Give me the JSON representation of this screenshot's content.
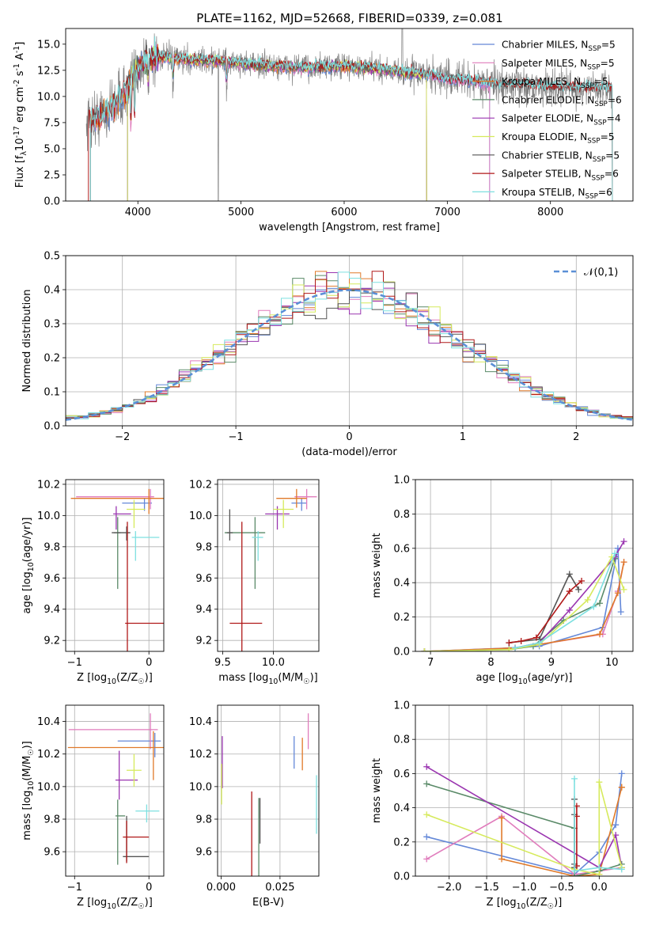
{
  "figure": {
    "title": "PLATE=1162, MJD=52668, FIBERID=0339, z=0.081"
  },
  "colors": {
    "Chabrier MILES": "#6488d8",
    "Salpeter MILES": "#e07cbc",
    "Kroupa MILES": "#e07a2a",
    "Chabrier ELODIE": "#5a8a68",
    "Salpeter ELODIE": "#9a35b0",
    "Kroupa ELODIE": "#d6ea5c",
    "Chabrier STELIB": "#555555",
    "Salpeter STELIB": "#b01818",
    "Kroupa STELIB": "#7ee0e0",
    "normal_curve": "#5b8fd6",
    "data": "#7f7f7f"
  },
  "chart_data": [
    {
      "id": "spectrum",
      "type": "line",
      "xlabel": "wavelength [Angstrom, rest frame]",
      "ylabel": "Flux [f$_λ$10$^{-17}$ erg cm$^{-2}$ s$^{-1}$ A$^{-1}$]",
      "xlim": [
        3300,
        8800
      ],
      "ylim": [
        0,
        16.5
      ],
      "xticks": [
        4000,
        5000,
        6000,
        7000,
        8000
      ],
      "yticks": [
        0.0,
        2.5,
        5.0,
        7.5,
        10.0,
        12.5,
        15.0
      ],
      "grid": false,
      "legend_position": "upper right",
      "legend": [
        "Chabrier MILES, N$_{SSP}$=5",
        "Salpeter MILES, N$_{SSP}$=5",
        "Kroupa MILES, N$_{SSP}$=5",
        "Chabrier ELODIE, N$_{SSP}$=6",
        "Salpeter ELODIE, N$_{SSP}$=4",
        "Kroupa ELODIE, N$_{SSP}$=5",
        "Chabrier STELIB, N$_{SSP}$=5",
        "Salpeter STELIB, N$_{SSP}$=6",
        "Kroupa STELIB, N$_{SSP}$=6"
      ],
      "continuum_x": [
        3500,
        3600,
        3700,
        3800,
        3900,
        4000,
        4100,
        4200,
        4300,
        4500,
        4800,
        5000,
        5200,
        5500,
        5800,
        6000,
        6300,
        6600,
        6800,
        7000,
        7300,
        7500,
        7700,
        8000,
        8300,
        8500
      ],
      "continuum_y": [
        7.6,
        7.9,
        8.6,
        9.5,
        10.6,
        12.8,
        13.6,
        13.8,
        13.7,
        13.5,
        13.4,
        13.2,
        13.0,
        12.8,
        12.8,
        12.9,
        12.7,
        12.3,
        12.1,
        11.7,
        11.4,
        11.1,
        11.1,
        10.9,
        10.8,
        10.8
      ]
    },
    {
      "id": "residual-histogram",
      "type": "line",
      "xlabel": "(data-model)/error",
      "ylabel": "Normed distribution",
      "xlim": [
        -2.5,
        2.5
      ],
      "ylim": [
        0,
        0.5
      ],
      "xticks": [
        -2,
        -1,
        0,
        1,
        2
      ],
      "yticks": [
        0.0,
        0.1,
        0.2,
        0.3,
        0.4,
        0.5
      ],
      "grid": true,
      "legend_position": "upper right",
      "legend": [
        "$\\mathcal{N}(0,1)$"
      ],
      "normal_curve": {
        "mean": 0,
        "sigma": 1
      }
    },
    {
      "id": "age-vs-Z",
      "type": "scatter",
      "xlabel": "Z [log$_{10}$(Z/Z$_☉$)]",
      "ylabel": "age  [log$_{10}$(age/yr)]",
      "xlim": [
        -1.12,
        0.2
      ],
      "ylim": [
        9.13,
        10.23
      ],
      "xticks": [
        -1,
        0
      ],
      "yticks": [
        9.2,
        9.4,
        9.6,
        9.8,
        10.0,
        10.2
      ],
      "grid": true,
      "points": [
        {
          "model": "Chabrier MILES",
          "x": -0.06,
          "xerr": [
            0.3,
            0.1
          ],
          "y": 10.08,
          "yerr": [
            0.05,
            0.03
          ]
        },
        {
          "model": "Salpeter MILES",
          "x": 0.02,
          "xerr": [
            1.0,
            0.05
          ],
          "y": 10.12,
          "yerr": [
            0.08,
            0.05
          ]
        },
        {
          "model": "Kroupa MILES",
          "x": 0.0,
          "xerr": [
            1.05,
            0.2
          ],
          "y": 10.11,
          "yerr": [
            0.1,
            0.06
          ]
        },
        {
          "model": "Chabrier ELODIE",
          "x": -0.42,
          "xerr": [
            0.05,
            0.04
          ],
          "y": 9.89,
          "yerr": [
            0.36,
            0.1
          ]
        },
        {
          "model": "Salpeter ELODIE",
          "x": -0.44,
          "xerr": [
            0.04,
            0.2
          ],
          "y": 10.01,
          "yerr": [
            0.1,
            0.05
          ]
        },
        {
          "model": "Kroupa ELODIE",
          "x": -0.2,
          "xerr": [
            0.1,
            0.15
          ],
          "y": 10.04,
          "yerr": [
            0.12,
            0.06
          ]
        },
        {
          "model": "Chabrier STELIB",
          "x": -0.3,
          "xerr": [
            0.2,
            0.05
          ],
          "y": 9.89,
          "yerr": [
            0.05,
            0.04
          ]
        },
        {
          "model": "Salpeter STELIB",
          "x": -0.29,
          "xerr": [
            0.03,
            0.5
          ],
          "y": 9.31,
          "yerr": [
            0.3,
            0.65
          ]
        },
        {
          "model": "Kroupa STELIB",
          "x": -0.18,
          "xerr": [
            0.05,
            0.32
          ],
          "y": 9.86,
          "yerr": [
            0.15,
            0.04
          ]
        }
      ]
    },
    {
      "id": "age-vs-mass",
      "type": "scatter",
      "xlabel": "mass [log$_{10}$(M/M$_☉$)]",
      "ylabel": "",
      "xlim": [
        9.45,
        10.45
      ],
      "ylim": [
        9.13,
        10.23
      ],
      "xticks": [
        9.5,
        10.0
      ],
      "yticks": [
        9.2,
        9.4,
        9.6,
        9.8,
        10.0,
        10.2
      ],
      "grid": true,
      "points": [
        {
          "model": "Chabrier MILES",
          "x": 10.28,
          "xerr": [
            0.1,
            0.05
          ],
          "y": 10.08,
          "yerr": [
            0.05,
            0.03
          ]
        },
        {
          "model": "Salpeter MILES",
          "x": 10.33,
          "xerr": [
            0.12,
            0.1
          ],
          "y": 10.12,
          "yerr": [
            0.08,
            0.05
          ]
        },
        {
          "model": "Kroupa MILES",
          "x": 10.23,
          "xerr": [
            0.2,
            0.1
          ],
          "y": 10.11,
          "yerr": [
            0.06,
            0.06
          ]
        },
        {
          "model": "Chabrier ELODIE",
          "x": 9.82,
          "xerr": [
            0.3,
            0.1
          ],
          "y": 9.89,
          "yerr": [
            0.36,
            0.1
          ]
        },
        {
          "model": "Salpeter ELODIE",
          "x": 10.04,
          "xerr": [
            0.12,
            0.12
          ],
          "y": 10.01,
          "yerr": [
            0.1,
            0.05
          ]
        },
        {
          "model": "Kroupa ELODIE",
          "x": 10.1,
          "xerr": [
            0.1,
            0.1
          ],
          "y": 10.04,
          "yerr": [
            0.12,
            0.06
          ]
        },
        {
          "model": "Chabrier STELIB",
          "x": 9.57,
          "xerr": [
            0.03,
            0.03
          ],
          "y": 9.89,
          "yerr": [
            0.05,
            0.15
          ]
        },
        {
          "model": "Salpeter STELIB",
          "x": 9.69,
          "xerr": [
            0.12,
            0.2
          ],
          "y": 9.31,
          "yerr": [
            0.3,
            0.65
          ]
        },
        {
          "model": "Kroupa STELIB",
          "x": 9.85,
          "xerr": [
            0.06,
            0.05
          ],
          "y": 9.86,
          "yerr": [
            0.15,
            0.04
          ]
        }
      ]
    },
    {
      "id": "mass-weight-vs-age",
      "type": "line",
      "xlabel": "age  [log$_{10}$(age/yr)]",
      "ylabel": "mass weight",
      "xlim": [
        6.75,
        10.35
      ],
      "ylim": [
        0,
        1.0
      ],
      "xticks": [
        7,
        8,
        9,
        10
      ],
      "yticks": [
        0.0,
        0.2,
        0.4,
        0.6,
        0.8,
        1.0
      ],
      "grid": true,
      "series": [
        {
          "model": "Chabrier MILES",
          "x": [
            6.9,
            8.3,
            8.8,
            9.85,
            10.1,
            10.15
          ],
          "y": [
            0.0,
            0.02,
            0.03,
            0.14,
            0.6,
            0.23
          ]
        },
        {
          "model": "Salpeter MILES",
          "x": [
            6.9,
            8.4,
            8.8,
            9.85,
            10.1,
            10.2
          ],
          "y": [
            0.0,
            0.02,
            0.04,
            0.1,
            0.35,
            0.52
          ]
        },
        {
          "model": "Kroupa MILES",
          "x": [
            6.9,
            8.4,
            8.8,
            9.8,
            10.1,
            10.2
          ],
          "y": [
            0.0,
            0.02,
            0.04,
            0.1,
            0.34,
            0.52
          ]
        },
        {
          "model": "Chabrier ELODIE",
          "x": [
            6.9,
            8.3,
            8.7,
            9.2,
            9.8,
            10.05
          ],
          "y": [
            0.0,
            0.01,
            0.03,
            0.18,
            0.28,
            0.54
          ]
        },
        {
          "model": "Salpeter ELODIE",
          "x": [
            8.4,
            8.8,
            9.3,
            10.05,
            10.2
          ],
          "y": [
            0.02,
            0.05,
            0.24,
            0.55,
            0.64
          ]
        },
        {
          "model": "Kroupa ELODIE",
          "x": [
            6.9,
            8.3,
            8.8,
            9.6,
            10.0,
            10.2
          ],
          "y": [
            0.0,
            0.01,
            0.04,
            0.3,
            0.55,
            0.36
          ]
        },
        {
          "model": "Chabrier STELIB",
          "x": [
            8.3,
            8.8,
            9.3,
            9.45
          ],
          "y": [
            0.05,
            0.07,
            0.45,
            0.36
          ]
        },
        {
          "model": "Salpeter STELIB",
          "x": [
            8.3,
            8.5,
            8.75,
            9.3,
            9.5
          ],
          "y": [
            0.05,
            0.06,
            0.08,
            0.35,
            0.41
          ]
        },
        {
          "model": "Kroupa STELIB",
          "x": [
            8.4,
            8.8,
            9.7,
            10.05
          ],
          "y": [
            0.02,
            0.05,
            0.26,
            0.57
          ]
        }
      ]
    },
    {
      "id": "mass-vs-Z",
      "type": "scatter",
      "xlabel": "Z [log$_{10}$(Z/Z$_☉$)]",
      "ylabel": "mass [log$_{10}$(M/M$_☉$)]",
      "xlim": [
        -1.12,
        0.2
      ],
      "ylim": [
        9.45,
        10.5
      ],
      "xticks": [
        -1,
        0
      ],
      "yticks": [
        9.6,
        9.8,
        10.0,
        10.2,
        10.4
      ],
      "grid": true,
      "points": [
        {
          "model": "Chabrier MILES",
          "x": 0.08,
          "xerr": [
            0.5,
            0.08
          ],
          "y": 10.28,
          "yerr": [
            0.1,
            0.05
          ]
        },
        {
          "model": "Salpeter MILES",
          "x": 0.02,
          "xerr": [
            1.1,
            0.1
          ],
          "y": 10.35,
          "yerr": [
            0.12,
            0.1
          ]
        },
        {
          "model": "Kroupa MILES",
          "x": 0.06,
          "xerr": [
            1.15,
            0.15
          ],
          "y": 10.24,
          "yerr": [
            0.2,
            0.1
          ]
        },
        {
          "model": "Chabrier ELODIE",
          "x": -0.42,
          "xerr": [
            0.03,
            0.1
          ],
          "y": 9.82,
          "yerr": [
            0.3,
            0.1
          ]
        },
        {
          "model": "Salpeter ELODIE",
          "x": -0.4,
          "xerr": [
            0.05,
            0.25
          ],
          "y": 10.04,
          "yerr": [
            0.12,
            0.18
          ]
        },
        {
          "model": "Kroupa ELODIE",
          "x": -0.2,
          "xerr": [
            0.1,
            0.1
          ],
          "y": 10.1,
          "yerr": [
            0.1,
            0.1
          ]
        },
        {
          "model": "Chabrier STELIB",
          "x": -0.3,
          "xerr": [
            0.05,
            0.3
          ],
          "y": 9.57,
          "yerr": [
            0.03,
            0.25
          ]
        },
        {
          "model": "Salpeter STELIB",
          "x": -0.3,
          "xerr": [
            0.05,
            0.3
          ],
          "y": 9.69,
          "yerr": [
            0.16,
            0.1
          ]
        },
        {
          "model": "Kroupa STELIB",
          "x": -0.03,
          "xerr": [
            0.15,
            0.17
          ],
          "y": 9.85,
          "yerr": [
            0.07,
            0.04
          ]
        }
      ]
    },
    {
      "id": "mass-vs-ebv",
      "type": "scatter",
      "xlabel": "E(B-V)",
      "ylabel": "",
      "xlim": [
        -0.0015,
        0.0415
      ],
      "ylim": [
        9.45,
        10.5
      ],
      "xticks": [
        0.0,
        0.025
      ],
      "yticks": [
        9.6,
        9.8,
        10.0,
        10.2,
        10.4
      ],
      "grid": true,
      "points": [
        {
          "model": "Chabrier MILES",
          "x": 0.031,
          "yerr": [
            0.12,
            0.08
          ],
          "y": 10.23
        },
        {
          "model": "Salpeter MILES",
          "x": 0.037,
          "yerr": [
            0.1,
            0.12
          ],
          "y": 10.33
        },
        {
          "model": "Kroupa MILES",
          "x": 0.0345,
          "yerr": [
            0.12,
            0.08
          ],
          "y": 10.22
        },
        {
          "model": "Chabrier ELODIE",
          "x": 0.016,
          "yerr": [
            0.28,
            0.3
          ],
          "y": 9.63
        },
        {
          "model": "Salpeter ELODIE",
          "x": 0.0005,
          "yerr": [
            0.11,
            0.21
          ],
          "y": 10.1
        },
        {
          "model": "Kroupa ELODIE",
          "x": 0.0002,
          "yerr": [
            0.15,
            0.1
          ],
          "y": 10.04
        },
        {
          "model": "Chabrier STELIB",
          "x": 0.0165,
          "yerr": [
            0.1,
            0.18
          ],
          "y": 9.75
        },
        {
          "model": "Salpeter STELIB",
          "x": 0.013,
          "yerr": [
            0.26,
            0.3
          ],
          "y": 9.67
        },
        {
          "model": "Kroupa STELIB",
          "x": 0.0405,
          "yerr": [
            0.2,
            0.16
          ],
          "y": 9.91
        }
      ]
    },
    {
      "id": "mass-weight-vs-Z",
      "type": "line",
      "xlabel": "Z [log$_{10}$(Z/Z$_☉$)]",
      "ylabel": "mass weight",
      "xlim": [
        -2.45,
        0.45
      ],
      "ylim": [
        0,
        1.0
      ],
      "xticks": [
        -2.0,
        -1.5,
        -1.0,
        -0.5,
        0.0
      ],
      "yticks": [
        0.0,
        0.2,
        0.4,
        0.6,
        0.8,
        1.0
      ],
      "grid": true,
      "series": [
        {
          "model": "Chabrier MILES",
          "x": [
            -2.3,
            -0.33,
            0.0,
            0.22,
            0.3
          ],
          "y": [
            0.23,
            0.01,
            0.14,
            0.3,
            0.6
          ]
        },
        {
          "model": "Salpeter MILES",
          "x": [
            -2.3,
            -1.3,
            -0.33,
            0.0,
            0.3
          ],
          "y": [
            0.1,
            0.35,
            0.01,
            0.03,
            0.05
          ]
        },
        {
          "model": "Kroupa MILES",
          "x": [
            -1.3,
            -1.3,
            -0.33,
            0.0,
            0.3,
            0.3
          ],
          "y": [
            0.34,
            0.1,
            0.0,
            0.01,
            0.52,
            0.52
          ]
        },
        {
          "model": "Chabrier ELODIE",
          "x": [
            -2.3,
            -0.33,
            -0.33,
            0.0,
            0.3
          ],
          "y": [
            0.54,
            0.28,
            0.0,
            0.03,
            0.07
          ]
        },
        {
          "model": "Salpeter ELODIE",
          "x": [
            -2.3,
            0.0,
            0.22,
            0.3
          ],
          "y": [
            0.64,
            0.05,
            0.24,
            0.05
          ]
        },
        {
          "model": "Kroupa ELODIE",
          "x": [
            -2.3,
            -0.33,
            0.0,
            0.0,
            0.3
          ],
          "y": [
            0.36,
            0.04,
            0.01,
            0.55,
            0.05
          ]
        },
        {
          "model": "Chabrier STELIB",
          "x": [
            -0.33,
            -0.33,
            -0.33,
            -0.33
          ],
          "y": [
            0.45,
            0.36,
            0.07,
            0.05
          ]
        },
        {
          "model": "Salpeter STELIB",
          "x": [
            -0.3,
            -0.3,
            -0.3
          ],
          "y": [
            0.41,
            0.35,
            0.06
          ]
        },
        {
          "model": "Kroupa STELIB",
          "x": [
            -0.33,
            -0.33,
            0.0,
            0.3
          ],
          "y": [
            0.57,
            0.03,
            0.05,
            0.04
          ]
        }
      ]
    }
  ]
}
